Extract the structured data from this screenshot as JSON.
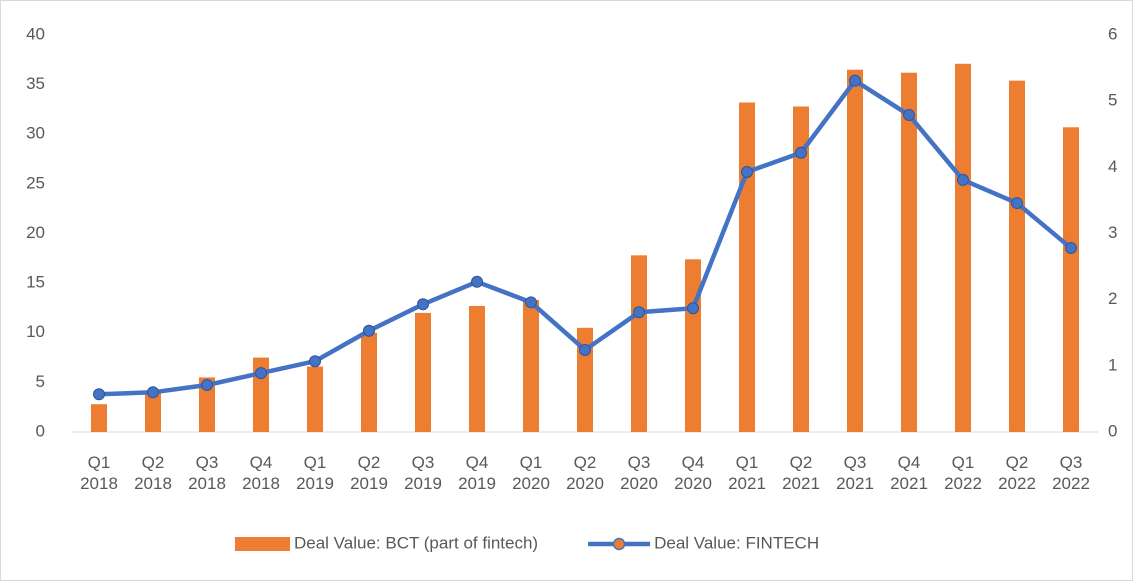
{
  "chart_data": {
    "type": "bar-line",
    "categories": [
      "Q1 2018",
      "Q2 2018",
      "Q3 2018",
      "Q4 2018",
      "Q1 2019",
      "Q2 2019",
      "Q3 2019",
      "Q4 2019",
      "Q1 2020",
      "Q2 2020",
      "Q3 2020",
      "Q4 2020",
      "Q1 2021",
      "Q2 2021",
      "Q3 2021",
      "Q4 2021",
      "Q1 2022",
      "Q2 2022",
      "Q3 2022"
    ],
    "series": [
      {
        "name": "Deal Value: BCT (part of fintech)",
        "type": "bar",
        "color": "#ed7d31",
        "values": [
          2.8,
          4.1,
          5.5,
          7.5,
          6.6,
          10,
          12.0,
          12.7,
          13.3,
          10.5,
          17.8,
          17.4,
          33.2,
          32.8,
          36.5,
          36.2,
          37.1,
          35.4,
          30.7
        ]
      },
      {
        "name": "Deal Value: FINTECH",
        "type": "line",
        "axis": "y2",
        "color": "#4472c4",
        "values": [
          0.57,
          0.6,
          0.71,
          0.89,
          1.07,
          1.53,
          1.93,
          2.27,
          1.96,
          1.24,
          1.81,
          1.87,
          3.93,
          4.22,
          5.31,
          4.79,
          3.81,
          3.46,
          2.78
        ]
      }
    ],
    "ylim": [
      0,
      40
    ],
    "yticks": [
      0,
      5,
      10,
      15,
      20,
      25,
      30,
      35,
      40
    ],
    "y2lim": [
      0,
      6
    ],
    "y2ticks": [
      0,
      1,
      2,
      3,
      4,
      5,
      6
    ],
    "legend": "bottom",
    "grid": false
  }
}
